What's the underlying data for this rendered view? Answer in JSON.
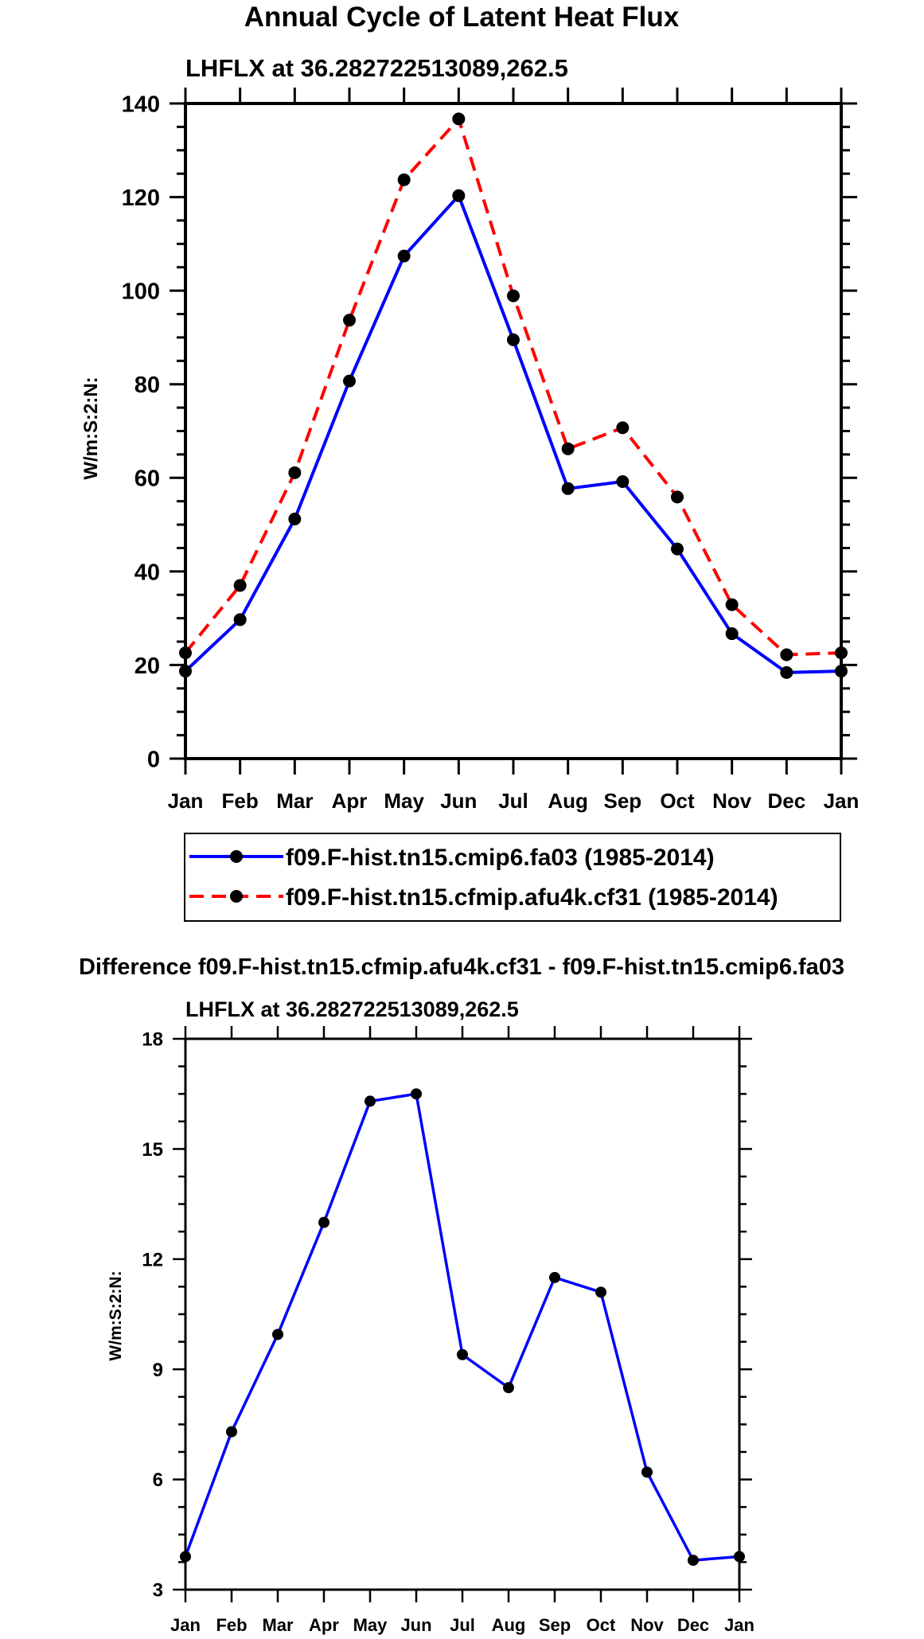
{
  "chart_data": [
    {
      "type": "line",
      "title": "Annual Cycle of Latent Heat Flux",
      "subtitle": "LHFLX at 36.282722513089,262.5",
      "xlabel": "",
      "ylabel": "W/m:S:2:N:",
      "categories": [
        "Jan",
        "Feb",
        "Mar",
        "Apr",
        "May",
        "Jun",
        "Jul",
        "Aug",
        "Sep",
        "Oct",
        "Nov",
        "Dec",
        "Jan"
      ],
      "ylim": [
        0,
        140
      ],
      "yticks": [
        0,
        20,
        40,
        60,
        80,
        100,
        120,
        140
      ],
      "series": [
        {
          "name": "f09.F-hist.tn15.cmip6.fa03 (1985-2014)",
          "color": "#0000ff",
          "dash": "solid",
          "values": [
            18.7,
            29.7,
            51.2,
            80.7,
            107.4,
            120.3,
            89.5,
            57.7,
            59.2,
            44.8,
            26.7,
            18.4,
            18.7
          ]
        },
        {
          "name": "f09.F-hist.tn15.cfmip.afu4k.cf31 (1985-2014)",
          "color": "#ff0000",
          "dash": "dashed",
          "values": [
            22.6,
            37.0,
            61.1,
            93.7,
            123.7,
            136.7,
            98.9,
            66.2,
            70.7,
            55.9,
            32.9,
            22.2,
            22.6
          ]
        }
      ],
      "legend": "bottom"
    },
    {
      "type": "line",
      "title": "Difference f09.F-hist.tn15.cfmip.afu4k.cf31 - f09.F-hist.tn15.cmip6.fa03",
      "subtitle": "LHFLX at 36.282722513089,262.5",
      "xlabel": "",
      "ylabel": "W/m:S:2:N:",
      "categories": [
        "Jan",
        "Feb",
        "Mar",
        "Apr",
        "May",
        "Jun",
        "Jul",
        "Aug",
        "Sep",
        "Oct",
        "Nov",
        "Dec",
        "Jan"
      ],
      "ylim": [
        3,
        18
      ],
      "yticks": [
        3,
        6,
        9,
        12,
        15,
        18
      ],
      "series": [
        {
          "name": "difference",
          "color": "#0000ff",
          "dash": "solid",
          "values": [
            3.9,
            7.3,
            9.95,
            13.0,
            16.3,
            16.5,
            9.4,
            8.5,
            11.5,
            11.1,
            6.2,
            3.8,
            3.9
          ]
        }
      ]
    }
  ]
}
